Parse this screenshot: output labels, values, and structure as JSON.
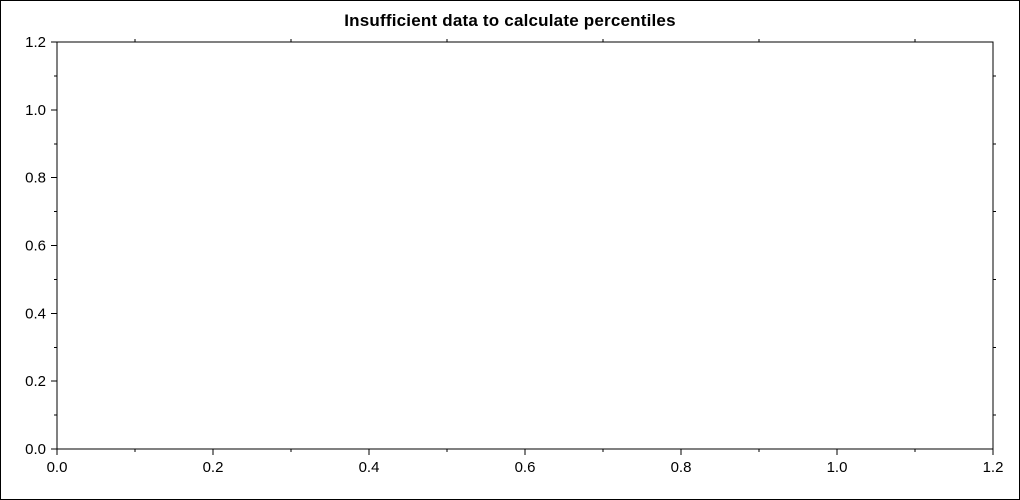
{
  "chart_data": {
    "type": "scatter",
    "title": "Insufficient data to calculate percentiles",
    "series": [],
    "points": [],
    "xlabel": "",
    "ylabel": "",
    "xlim": [
      0.0,
      1.2
    ],
    "ylim": [
      0.0,
      1.2
    ],
    "x_ticks": [
      0.0,
      0.2,
      0.4,
      0.6,
      0.8,
      1.0,
      1.2
    ],
    "y_ticks": [
      0.0,
      0.2,
      0.4,
      0.6,
      0.8,
      1.0,
      1.2
    ],
    "x_tick_labels": [
      "0.0",
      "0.2",
      "0.4",
      "0.6",
      "0.8",
      "1.0",
      "1.2"
    ],
    "y_tick_labels": [
      "0.0",
      "0.2",
      "0.4",
      "0.6",
      "0.8",
      "1.0",
      "1.2"
    ],
    "minor_tick_step": 0.1,
    "grid": false,
    "legend_position": "none",
    "plot_background": "#ffffff",
    "axis_color": "#000000"
  }
}
